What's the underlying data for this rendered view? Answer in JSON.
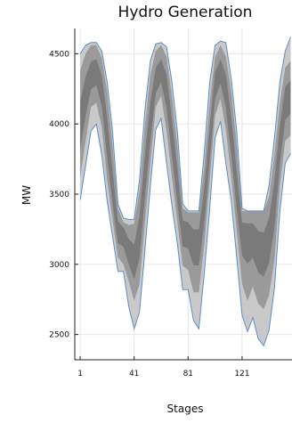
{
  "chart_data": {
    "type": "area",
    "title": "Hydro Generation",
    "xlabel": "Stages",
    "ylabel": "MW",
    "xlim": [
      -3,
      158
    ],
    "ylim": [
      2320,
      4680
    ],
    "x_ticks": [
      1,
      41,
      81,
      121
    ],
    "y_ticks": [
      2500,
      3000,
      3500,
      4000,
      4500
    ],
    "grid": true,
    "colors": {
      "outer_band": "#c9c9c9",
      "middle_band": "#9a9a9a",
      "inner_band": "#7a7a7a",
      "outline": "#5b8fc7"
    },
    "x": [
      1,
      5,
      9,
      13,
      17,
      21,
      25,
      29,
      33,
      37,
      41,
      45,
      49,
      53,
      57,
      61,
      65,
      69,
      73,
      77,
      81,
      85,
      89,
      93,
      97,
      101,
      105,
      109,
      113,
      117,
      121,
      125,
      129,
      133,
      137,
      141,
      145,
      149,
      153,
      157
    ],
    "series": [
      {
        "values_min": [
          3460,
          3700,
          3950,
          4000,
          3780,
          3450,
          3200,
          2950,
          2950,
          2700,
          2540,
          2660,
          3100,
          3560,
          3960,
          4040,
          3720,
          3420,
          3150,
          2820,
          2820,
          2600,
          2540,
          2940,
          3400,
          3900,
          4020,
          3720,
          3450,
          3050,
          2640,
          2520,
          2620,
          2470,
          2420,
          2530,
          2830,
          3380,
          3720,
          3790
        ]
      },
      {
        "values_p10": [
          3620,
          3880,
          4120,
          4150,
          3980,
          3600,
          3320,
          3050,
          3000,
          2880,
          2740,
          2860,
          3300,
          3720,
          4120,
          4200,
          3950,
          3620,
          3300,
          2990,
          2960,
          2800,
          2800,
          3140,
          3600,
          4060,
          4180,
          3960,
          3620,
          3240,
          2860,
          2740,
          2840,
          2720,
          2680,
          2780,
          3030,
          3560,
          3880,
          3920
        ]
      },
      {
        "values_p50": [
          3980,
          4200,
          4350,
          4380,
          4250,
          3900,
          3520,
          3230,
          3230,
          3100,
          3020,
          3200,
          3620,
          4000,
          4300,
          4380,
          4250,
          3900,
          3550,
          3240,
          3240,
          3150,
          3150,
          3420,
          3850,
          4280,
          4380,
          4250,
          3900,
          3520,
          3230,
          3220,
          3220,
          3120,
          3100,
          3200,
          3450,
          3850,
          4150,
          4200
        ]
      },
      {
        "values_p90": [
          4380,
          4500,
          4560,
          4560,
          4470,
          4230,
          3850,
          3400,
          3300,
          3280,
          3290,
          3520,
          3980,
          4350,
          4520,
          4560,
          4480,
          4200,
          3850,
          3400,
          3370,
          3370,
          3370,
          3700,
          4150,
          4480,
          4560,
          4480,
          4230,
          3850,
          3380,
          3380,
          3380,
          3380,
          3380,
          3480,
          3780,
          4150,
          4400,
          4450
        ]
      },
      {
        "values_max": [
          4500,
          4560,
          4580,
          4580,
          4520,
          4300,
          3950,
          3430,
          3330,
          3320,
          3320,
          3600,
          4100,
          4450,
          4570,
          4580,
          4550,
          4300,
          3950,
          3430,
          3380,
          3380,
          3380,
          3800,
          4300,
          4560,
          4590,
          4580,
          4320,
          3950,
          3400,
          3380,
          3380,
          3380,
          3380,
          3560,
          3900,
          4300,
          4520,
          4620
        ]
      }
    ]
  }
}
